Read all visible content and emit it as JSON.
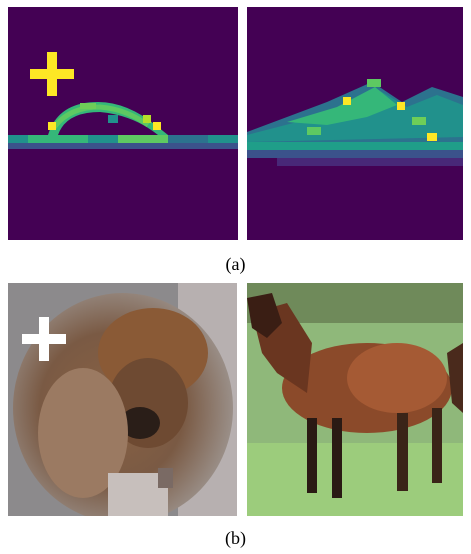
{
  "figure": {
    "row_a": {
      "caption": "(a)",
      "left_image": {
        "kind": "viridis-heatmap-sandal",
        "marker": "plus-icon",
        "marker_color": "#fde725"
      },
      "right_image": {
        "kind": "viridis-heatmap-sneaker"
      }
    },
    "row_b": {
      "caption": "(b)",
      "left_image": {
        "kind": "dog-photo",
        "marker": "plus-icon",
        "marker_color": "#ffffff"
      },
      "right_image": {
        "kind": "horse-photo"
      }
    }
  },
  "colors": {
    "viridis_bg": "#440154",
    "viridis_dark_green": "#21918c",
    "viridis_teal": "#35b779",
    "viridis_green": "#5ec962",
    "viridis_yellow": "#fde725",
    "viridis_blue": "#3b528b"
  }
}
